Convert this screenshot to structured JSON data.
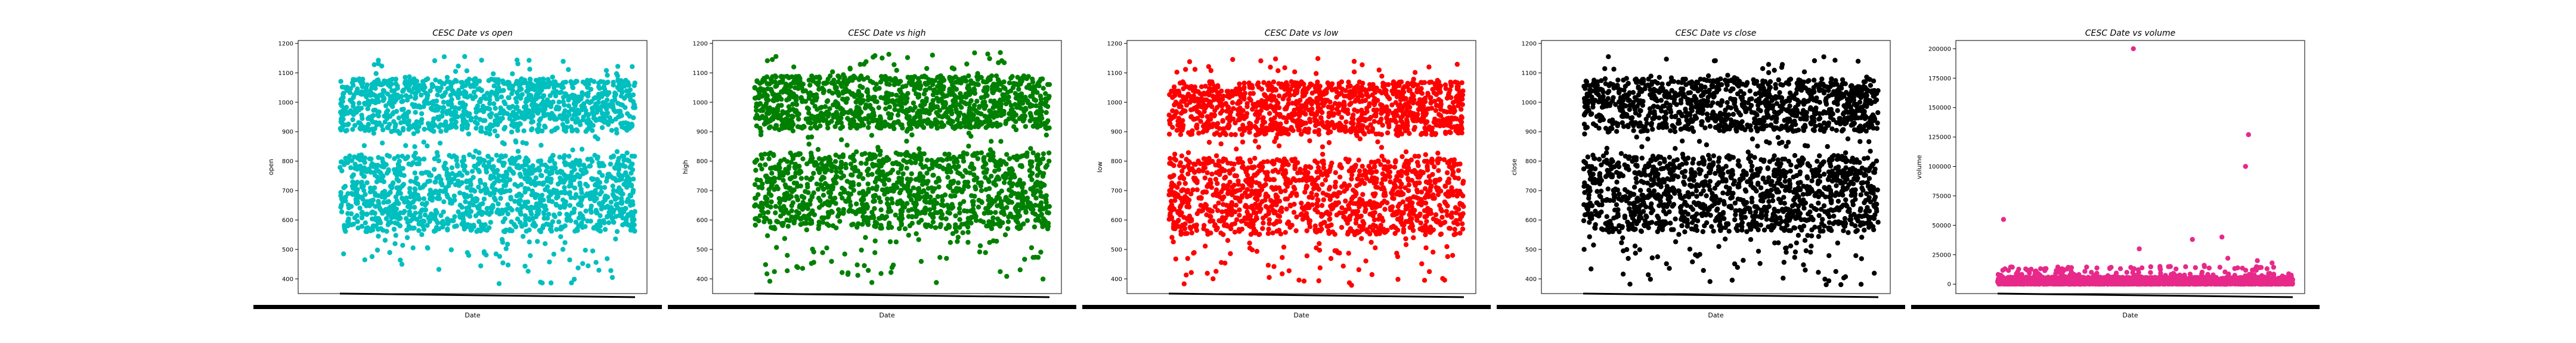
{
  "chart_data": [
    {
      "type": "scatter",
      "title": "CESC Date vs open",
      "xlabel": "Date",
      "ylabel": "open",
      "color": "#00bfbf",
      "ylim": [
        350,
        1210
      ],
      "yticks": [
        400,
        500,
        600,
        700,
        800,
        900,
        1000,
        1100,
        1200
      ],
      "ytick_labels": [
        "400",
        "500",
        "600",
        "700",
        "800",
        "900",
        "1000",
        "1100",
        "1200"
      ],
      "x_tick_labels": "overlapping, illegible dates",
      "point_count": 2400,
      "distribution": {
        "dense_bands": [
          [
            560,
            820
          ],
          [
            900,
            1080
          ]
        ],
        "sparse_range": [
          380,
          1160
        ],
        "outliers_low": 380
      }
    },
    {
      "type": "scatter",
      "title": "CESC Date vs high",
      "xlabel": "Date",
      "ylabel": "high",
      "color": "#008000",
      "ylim": [
        350,
        1210
      ],
      "yticks": [
        400,
        500,
        600,
        700,
        800,
        900,
        1000,
        1100,
        1200
      ],
      "ytick_labels": [
        "400",
        "500",
        "600",
        "700",
        "800",
        "900",
        "1000",
        "1100",
        "1200"
      ],
      "x_tick_labels": "overlapping, illegible dates",
      "point_count": 2400,
      "distribution": {
        "dense_bands": [
          [
            570,
            830
          ],
          [
            910,
            1090
          ]
        ],
        "sparse_range": [
          385,
          1170
        ],
        "outliers_low": 385
      }
    },
    {
      "type": "scatter",
      "title": "CESC Date vs low",
      "xlabel": "Date",
      "ylabel": "low",
      "color": "#ff0000",
      "ylim": [
        350,
        1210
      ],
      "yticks": [
        400,
        500,
        600,
        700,
        800,
        900,
        1000,
        1100,
        1200
      ],
      "ytick_labels": [
        "400",
        "500",
        "600",
        "700",
        "800",
        "900",
        "1000",
        "1100",
        "1200"
      ],
      "x_tick_labels": "overlapping, illegible dates",
      "point_count": 2400,
      "distribution": {
        "dense_bands": [
          [
            550,
            810
          ],
          [
            890,
            1070
          ]
        ],
        "sparse_range": [
          375,
          1150
        ],
        "outliers_low": 375
      }
    },
    {
      "type": "scatter",
      "title": "CESC Date vs close",
      "xlabel": "Date",
      "ylabel": "close",
      "color": "#000000",
      "ylim": [
        350,
        1210
      ],
      "yticks": [
        400,
        500,
        600,
        700,
        800,
        900,
        1000,
        1100,
        1200
      ],
      "ytick_labels": [
        "400",
        "500",
        "600",
        "700",
        "800",
        "900",
        "1000",
        "1100",
        "1200"
      ],
      "x_tick_labels": "overlapping, illegible dates",
      "point_count": 2400,
      "distribution": {
        "dense_bands": [
          [
            560,
            820
          ],
          [
            900,
            1080
          ]
        ],
        "sparse_range": [
          380,
          1160
        ],
        "outliers_low": 380
      }
    },
    {
      "type": "scatter",
      "title": "CESC Date vs volume",
      "xlabel": "Date",
      "ylabel": "volume",
      "color": "#e7298a",
      "ylim": [
        -8000,
        207000
      ],
      "yticks": [
        0,
        25000,
        50000,
        75000,
        100000,
        125000,
        150000,
        175000,
        200000
      ],
      "ytick_labels": [
        "0",
        "25000",
        "50000",
        "75000",
        "100000",
        "125000",
        "150000",
        "175000",
        "200000"
      ],
      "x_tick_labels": "overlapping, illegible dates",
      "point_count": 2400,
      "distribution": {
        "dense_bands": [
          [
            0,
            6000
          ]
        ],
        "sparse_range": [
          0,
          15000
        ],
        "outliers": [
          {
            "x_frac": 0.02,
            "y": 55000
          },
          {
            "x_frac": 0.46,
            "y": 200000
          },
          {
            "x_frac": 0.48,
            "y": 30000
          },
          {
            "x_frac": 0.66,
            "y": 38000
          },
          {
            "x_frac": 0.76,
            "y": 40000
          },
          {
            "x_frac": 0.78,
            "y": 22000
          },
          {
            "x_frac": 0.84,
            "y": 100000
          },
          {
            "x_frac": 0.85,
            "y": 127000
          },
          {
            "x_frac": 0.88,
            "y": 20000
          },
          {
            "x_frac": 0.93,
            "y": 18000
          },
          {
            "x_frac": 0.1,
            "y": 12000
          },
          {
            "x_frac": 0.25,
            "y": 14000
          },
          {
            "x_frac": 0.55,
            "y": 15000
          },
          {
            "x_frac": 0.7,
            "y": 16000
          }
        ]
      }
    }
  ]
}
